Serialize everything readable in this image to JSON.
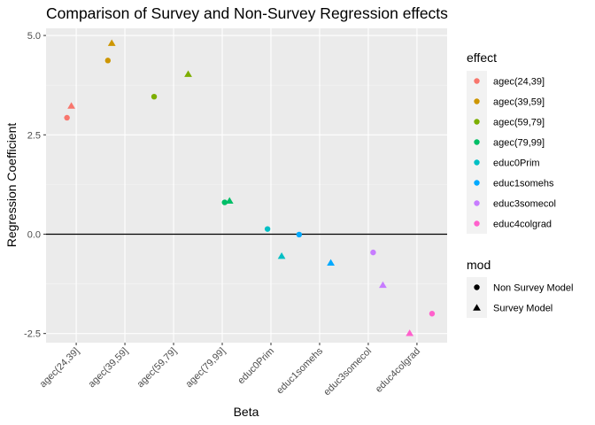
{
  "chart_data": {
    "type": "scatter",
    "title": "Comparison of Survey and Non-Survey Regression effects",
    "xlabel": "Beta",
    "ylabel": "Regression Coefficient",
    "ylim": [
      -2.73,
      5.18
    ],
    "y_ticks": [
      5.0,
      2.5,
      0.0,
      -2.5
    ],
    "y_tick_labels": [
      "5.0",
      "2.5",
      "0.0",
      "-2.5"
    ],
    "categories": [
      "agec(24,39]",
      "agec(39,59]",
      "agec(59,79]",
      "agec(79,99]",
      "educ0Prim",
      "educ1somehs",
      "educ3somecol",
      "educ4colgrad"
    ],
    "hline": 0,
    "background": "#ebebeb",
    "grid": true,
    "legend_position": "right",
    "effect_legend": {
      "title": "effect",
      "entries": [
        {
          "label": "agec(24,39]",
          "color": "#F8766D"
        },
        {
          "label": "agec(39,59]",
          "color": "#CD9600"
        },
        {
          "label": "agec(59,79]",
          "color": "#7CAE00"
        },
        {
          "label": "agec(79,99]",
          "color": "#00BE67"
        },
        {
          "label": "educ0Prim",
          "color": "#00BFC4"
        },
        {
          "label": "educ1somehs",
          "color": "#00A9FF"
        },
        {
          "label": "educ3somecol",
          "color": "#C77CFF"
        },
        {
          "label": "educ4colgrad",
          "color": "#FF61CC"
        }
      ]
    },
    "mod_legend": {
      "title": "mod",
      "entries": [
        {
          "label": "Non Survey Model",
          "shape": "circle"
        },
        {
          "label": "Survey Model",
          "shape": "triangle"
        }
      ]
    },
    "points": [
      {
        "effect": "agec(24,39]",
        "mod": "Non Survey Model",
        "x": 0.81,
        "y": 2.93
      },
      {
        "effect": "agec(24,39]",
        "mod": "Survey Model",
        "x": 0.9,
        "y": 3.22
      },
      {
        "effect": "agec(39,59]",
        "mod": "Non Survey Model",
        "x": 1.65,
        "y": 4.37
      },
      {
        "effect": "agec(39,59]",
        "mod": "Survey Model",
        "x": 1.73,
        "y": 4.8
      },
      {
        "effect": "agec(59,79]",
        "mod": "Non Survey Model",
        "x": 2.6,
        "y": 3.46
      },
      {
        "effect": "agec(59,79]",
        "mod": "Survey Model",
        "x": 3.3,
        "y": 4.02
      },
      {
        "effect": "agec(79,99]",
        "mod": "Non Survey Model",
        "x": 4.05,
        "y": 0.8
      },
      {
        "effect": "agec(79,99]",
        "mod": "Survey Model",
        "x": 4.15,
        "y": 0.83
      },
      {
        "effect": "educ0Prim",
        "mod": "Non Survey Model",
        "x": 4.93,
        "y": 0.13
      },
      {
        "effect": "educ0Prim",
        "mod": "Survey Model",
        "x": 5.22,
        "y": -0.56
      },
      {
        "effect": "educ1somehs",
        "mod": "Non Survey Model",
        "x": 5.58,
        "y": -0.01
      },
      {
        "effect": "educ1somehs",
        "mod": "Survey Model",
        "x": 6.23,
        "y": -0.73
      },
      {
        "effect": "educ3somecol",
        "mod": "Non Survey Model",
        "x": 7.1,
        "y": -0.46
      },
      {
        "effect": "educ3somecol",
        "mod": "Survey Model",
        "x": 7.3,
        "y": -1.29
      },
      {
        "effect": "educ4colgrad",
        "mod": "Non Survey Model",
        "x": 8.31,
        "y": -2.0
      },
      {
        "effect": "educ4colgrad",
        "mod": "Survey Model",
        "x": 7.85,
        "y": -2.5
      }
    ]
  }
}
